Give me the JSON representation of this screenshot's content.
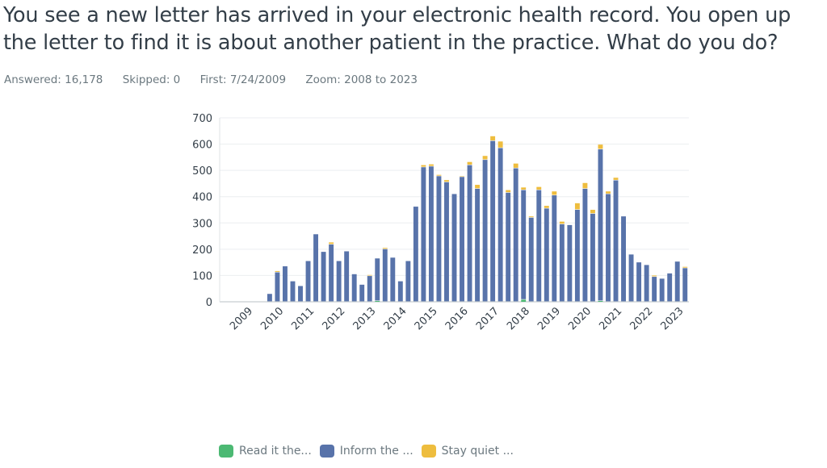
{
  "question": {
    "title": "You see a new letter has arrived in your electronic health record. You open up the letter to find it is about another patient in the practice. What do you do?"
  },
  "stats": {
    "answered": "Answered: 16,178",
    "skipped": "Skipped: 0",
    "first": "First: 7/24/2009",
    "zoom": "Zoom: 2008 to 2023"
  },
  "chart_data": {
    "type": "bar",
    "stacked": true,
    "granularity": "quarter",
    "ylim": [
      0,
      700
    ],
    "yticks": [
      "0",
      "100",
      "200",
      "300",
      "400",
      "500",
      "600",
      "700"
    ],
    "xtick_labels": [
      "2009",
      "2010",
      "2011",
      "2012",
      "2013",
      "2014",
      "2015",
      "2016",
      "2017",
      "2018",
      "2019",
      "2020",
      "2021",
      "2022",
      "2023"
    ],
    "grid": true,
    "legend_placement": "bottom",
    "series": [
      {
        "name": "Read it the...",
        "color": "#4cb973",
        "values": [
          0,
          0,
          0,
          0,
          0,
          0,
          0,
          0,
          0,
          0,
          0,
          0,
          0,
          0,
          0,
          0,
          0,
          0,
          0,
          0,
          3,
          0,
          0,
          0,
          0,
          0,
          0,
          0,
          0,
          0,
          0,
          0,
          0,
          0,
          0,
          0,
          0,
          0,
          0,
          8,
          0,
          0,
          0,
          0,
          0,
          0,
          0,
          0,
          0,
          3,
          0,
          0,
          0,
          0,
          0,
          0,
          0,
          0,
          0,
          0,
          0
        ]
      },
      {
        "name": "Inform the ...",
        "color": "#5873aa",
        "values": [
          0,
          0,
          0,
          0,
          0,
          0,
          30,
          112,
          135,
          78,
          60,
          155,
          257,
          190,
          218,
          155,
          192,
          105,
          65,
          98,
          162,
          200,
          168,
          78,
          155,
          362,
          512,
          515,
          478,
          455,
          410,
          475,
          520,
          430,
          540,
          612,
          585,
          415,
          508,
          417,
          320,
          425,
          355,
          405,
          295,
          292,
          350,
          430,
          335,
          577,
          410,
          462,
          325,
          180,
          150,
          140,
          95,
          88,
          108,
          153,
          128
        ]
      },
      {
        "name": "Stay quiet ...",
        "color": "#eebd3e",
        "values": [
          0,
          0,
          0,
          0,
          0,
          0,
          0,
          5,
          0,
          0,
          0,
          0,
          0,
          0,
          8,
          0,
          0,
          0,
          0,
          4,
          0,
          5,
          0,
          0,
          0,
          0,
          8,
          8,
          5,
          8,
          0,
          3,
          12,
          15,
          15,
          18,
          25,
          10,
          18,
          10,
          5,
          12,
          10,
          15,
          10,
          0,
          25,
          22,
          15,
          18,
          10,
          10,
          0,
          0,
          0,
          0,
          5,
          0,
          0,
          0,
          5
        ]
      }
    ]
  }
}
